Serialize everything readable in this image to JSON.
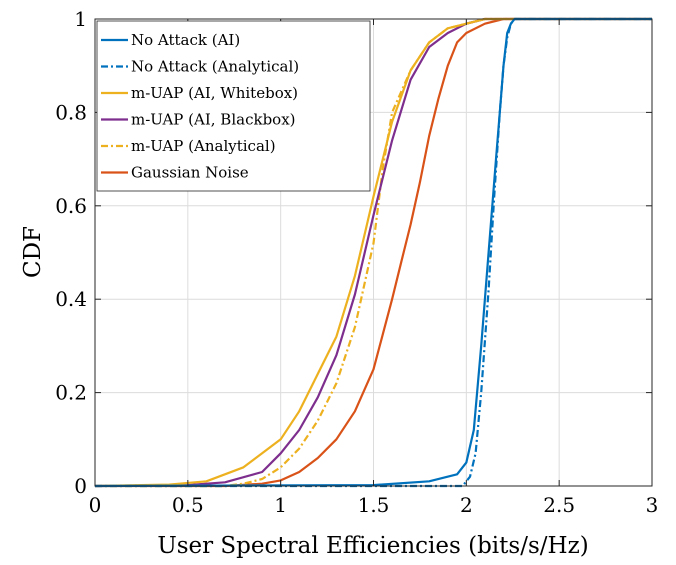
{
  "chart_data": {
    "type": "line",
    "xlabel": "User Spectral Efficiencies (bits/s/Hz)",
    "ylabel": "CDF",
    "xlim": [
      0,
      3
    ],
    "ylim": [
      0,
      1
    ],
    "xticks": [
      0,
      0.5,
      1,
      1.5,
      2,
      2.5,
      3
    ],
    "xtick_labels": [
      "0",
      "0.5",
      "1",
      "1.5",
      "2",
      "2.5",
      "3"
    ],
    "yticks": [
      0,
      0.2,
      0.4,
      0.6,
      0.8,
      1
    ],
    "ytick_labels": [
      "0",
      "0.2",
      "0.4",
      "0.6",
      "0.8",
      "1"
    ],
    "grid": true,
    "legend_position": "top-left",
    "series": [
      {
        "name": "No Attack (AI)",
        "color": "#0072BD",
        "dash": "solid",
        "x": [
          0.0,
          1.5,
          1.8,
          1.95,
          2.0,
          2.04,
          2.08,
          2.12,
          2.16,
          2.18,
          2.2,
          2.22,
          2.24,
          2.26,
          2.3,
          3.0
        ],
        "y": [
          0.0,
          0.002,
          0.01,
          0.025,
          0.05,
          0.12,
          0.3,
          0.5,
          0.7,
          0.8,
          0.9,
          0.97,
          0.99,
          1.0,
          1.0,
          1.0
        ]
      },
      {
        "name": "No Attack (Analytical)",
        "color": "#0072BD",
        "dash": "dashdot",
        "x": [
          0.0,
          1.98,
          2.02,
          2.05,
          2.08,
          2.12,
          2.15,
          2.18,
          2.2,
          2.22,
          2.24,
          2.26,
          2.3,
          3.0
        ],
        "y": [
          0.0,
          0.0,
          0.02,
          0.07,
          0.2,
          0.42,
          0.62,
          0.8,
          0.9,
          0.96,
          0.99,
          1.0,
          1.0,
          1.0
        ]
      },
      {
        "name": "m-UAP (AI, Whitebox)",
        "color": "#EDB120",
        "dash": "solid",
        "x": [
          0.0,
          0.4,
          0.6,
          0.8,
          1.0,
          1.1,
          1.2,
          1.3,
          1.4,
          1.5,
          1.6,
          1.7,
          1.8,
          1.9,
          2.0,
          2.1,
          2.2,
          2.3,
          3.0
        ],
        "y": [
          0.0,
          0.003,
          0.01,
          0.04,
          0.1,
          0.16,
          0.24,
          0.32,
          0.45,
          0.62,
          0.78,
          0.89,
          0.95,
          0.98,
          0.99,
          1.0,
          1.0,
          1.0,
          1.0
        ]
      },
      {
        "name": "m-UAP (AI, Blackbox)",
        "color": "#7E2F8E",
        "dash": "solid",
        "x": [
          0.0,
          0.5,
          0.7,
          0.9,
          1.0,
          1.1,
          1.2,
          1.3,
          1.4,
          1.5,
          1.6,
          1.7,
          1.8,
          1.9,
          2.0,
          2.1,
          2.2,
          2.3,
          3.0
        ],
        "y": [
          0.0,
          0.002,
          0.008,
          0.03,
          0.07,
          0.12,
          0.19,
          0.28,
          0.41,
          0.58,
          0.74,
          0.87,
          0.94,
          0.97,
          0.99,
          1.0,
          1.0,
          1.0,
          1.0
        ]
      },
      {
        "name": "m-UAP (Analytical)",
        "color": "#EDB120",
        "dash": "dashdot",
        "x": [
          0.0,
          0.7,
          0.8,
          0.9,
          1.0,
          1.1,
          1.2,
          1.3,
          1.4,
          1.5,
          1.55,
          1.6,
          1.7,
          1.8,
          1.9,
          2.0,
          2.1,
          2.2,
          3.0
        ],
        "y": [
          0.0,
          0.0,
          0.005,
          0.015,
          0.04,
          0.08,
          0.14,
          0.22,
          0.34,
          0.52,
          0.68,
          0.8,
          0.89,
          0.95,
          0.98,
          0.99,
          1.0,
          1.0,
          1.0
        ]
      },
      {
        "name": "Gaussian Noise",
        "color": "#D95319",
        "dash": "solid",
        "x": [
          0.0,
          0.7,
          0.9,
          1.0,
          1.1,
          1.2,
          1.3,
          1.4,
          1.5,
          1.6,
          1.65,
          1.7,
          1.75,
          1.8,
          1.85,
          1.9,
          1.95,
          2.0,
          2.1,
          2.2,
          2.3,
          3.0
        ],
        "y": [
          0.0,
          0.0,
          0.005,
          0.012,
          0.03,
          0.06,
          0.1,
          0.16,
          0.25,
          0.4,
          0.48,
          0.56,
          0.65,
          0.75,
          0.83,
          0.9,
          0.95,
          0.97,
          0.99,
          1.0,
          1.0,
          1.0
        ]
      }
    ]
  }
}
